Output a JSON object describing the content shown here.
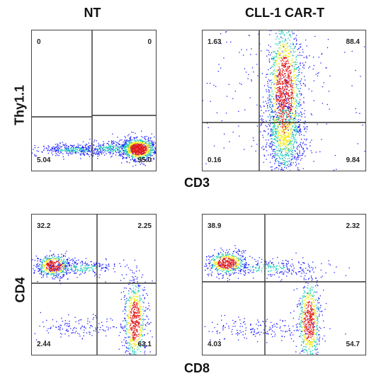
{
  "titles": {
    "left": "NT",
    "right": "CLL-1 CAR-T"
  },
  "axes": {
    "top_y": "Thy1.1",
    "top_x": "CD3",
    "bottom_y": "CD4",
    "bottom_x": "CD8"
  },
  "colors": {
    "low": "#1a1aff",
    "mid": "#18c8b4",
    "high": "#f2ec1c",
    "peak": "#e21a1a",
    "gate": "#333333"
  },
  "chart_data": [
    {
      "type": "scatter",
      "panel": "NT Thy1.1 vs CD3",
      "xlabel": "CD3",
      "ylabel": "Thy1.1",
      "quadrants": {
        "upper_left": "0",
        "upper_right": "0",
        "lower_left": "5.04",
        "lower_right": "95.0"
      }
    },
    {
      "type": "scatter",
      "panel": "CLL-1 CAR-T Thy1.1 vs CD3",
      "xlabel": "CD3",
      "ylabel": "Thy1.1",
      "quadrants": {
        "upper_left": "1.63",
        "upper_right": "88.4",
        "lower_left": "0.16",
        "lower_right": "9.84"
      }
    },
    {
      "type": "scatter",
      "panel": "NT CD4 vs CD8",
      "xlabel": "CD8",
      "ylabel": "CD4",
      "quadrants": {
        "upper_left": "32.2",
        "upper_right": "2.25",
        "lower_left": "2.44",
        "lower_right": "63.1"
      }
    },
    {
      "type": "scatter",
      "panel": "CLL-1 CAR-T CD4 vs CD8",
      "xlabel": "CD8",
      "ylabel": "CD4",
      "quadrants": {
        "upper_left": "38.9",
        "upper_right": "2.32",
        "lower_left": "4.03",
        "lower_right": "54.7"
      }
    }
  ]
}
